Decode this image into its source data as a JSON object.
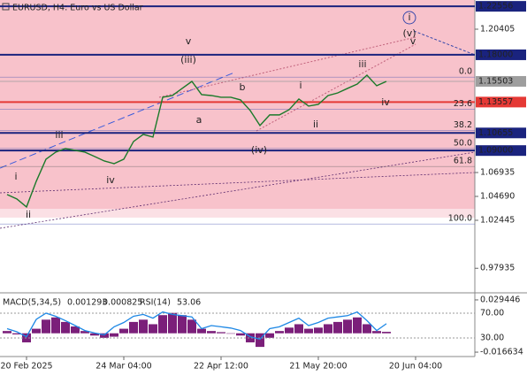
{
  "chart_data": [
    {
      "type": "line",
      "title": "EURUSD, H4:  Euro vs US Dollar",
      "categories": [
        null,
        null,
        "20 Feb 2025",
        null,
        null,
        null,
        null,
        null,
        null,
        null,
        null,
        null,
        "24 Mar 04:00",
        null,
        null,
        null,
        null,
        null,
        null,
        null,
        null,
        null,
        "22 Apr 12:00",
        null,
        null,
        null,
        null,
        null,
        null,
        null,
        null,
        null,
        "21 May 20:00",
        null,
        null,
        null,
        null,
        null,
        null,
        null,
        null,
        null,
        "20 Jun 04:00",
        null,
        null,
        null,
        null,
        null
      ],
      "series": [
        {
          "name": "EURUSD",
          "color": "#1b7a2a",
          "values": [
            1.0487,
            1.0445,
            1.037,
            1.0611,
            1.0819,
            1.0885,
            1.0919,
            1.0902,
            1.0885,
            1.0844,
            1.0802,
            1.0777,
            1.0819,
            1.0985,
            1.1052,
            1.1027,
            1.1401,
            1.1417,
            1.1484,
            1.155,
            1.1426,
            1.1417,
            1.1401,
            1.1401,
            1.1376,
            1.1276,
            1.1135,
            1.1235,
            1.1235,
            1.1284,
            1.1384,
            1.1318,
            1.1334,
            1.1417,
            1.1442,
            1.1484,
            1.1525,
            1.1608,
            1.1509,
            1.155,
            null,
            null,
            null,
            null,
            null,
            null,
            null,
            null
          ]
        }
      ],
      "ylim": [
        0.9571,
        1.2315
      ],
      "yticks": [
        1.20405,
        1.06935,
        {
          "value": 1.0469,
          "label": "1.04690"
        },
        1.02445,
        0.97935
      ],
      "levels": [
        {
          "value": 1.22556,
          "color": "#1a237e"
        },
        {
          "value": 1.18,
          "label": "1.18000",
          "color": "#1a237e"
        },
        {
          "value": 1.15503,
          "color": "#9e9e9e"
        },
        {
          "value": 1.13557,
          "color": "#e53935"
        },
        {
          "value": 1.10655,
          "color": "#1a237e"
        },
        {
          "value": 1.09,
          "label": "1.09000",
          "color": "#1a237e"
        }
      ],
      "fib_levels": [
        {
          "value": 1.159,
          "label": "0.0"
        },
        {
          "value": 1.129,
          "label": "23.6"
        },
        {
          "value": 1.109,
          "label": "38.2"
        },
        {
          "value": 1.092,
          "label": "50.0"
        },
        {
          "value": 1.075,
          "label": "61.8"
        },
        {
          "value": 1.021,
          "label": "100.0"
        }
      ],
      "annotations": [
        {
          "text": "i",
          "color": "#666"
        },
        {
          "text": "ii",
          "color": "#666"
        },
        {
          "text": "iii",
          "color": "#666"
        },
        {
          "text": "iv",
          "color": "#666"
        },
        {
          "text": "(iii)",
          "color": "#c62828"
        },
        {
          "text": "v",
          "color": "#666"
        },
        {
          "text": "a",
          "color": "#666"
        },
        {
          "text": "b",
          "color": "#666"
        },
        {
          "text": "(iv)",
          "color": "#c62828"
        },
        {
          "text": "i",
          "color": "#666"
        },
        {
          "text": "ii",
          "color": "#666"
        },
        {
          "text": "iii",
          "color": "#666"
        },
        {
          "text": "iv",
          "color": "#666"
        },
        {
          "text": "(v)",
          "color": "#c62828"
        },
        {
          "text": "v",
          "color": "#666"
        },
        {
          "text": "i",
          "color": "#3949ab"
        }
      ]
    },
    {
      "type": "indicator",
      "macd_name": "MACD(5,34,5)",
      "macd_value": 0.001293,
      "signal_value": 0.000825,
      "rsi_name": "RSI(14)",
      "rsi_value": 53.06,
      "series": [
        {
          "name": "MACD",
          "color": "#7b1f7a",
          "values": [
            0.002,
            -0.001,
            -0.008,
            0.004,
            0.012,
            0.014,
            0.01,
            0.006,
            0.002,
            -0.002,
            -0.004,
            -0.003,
            0.004,
            0.01,
            0.012,
            0.008,
            0.016,
            0.018,
            0.016,
            0.012,
            0.004,
            0.002,
            0.001,
            0,
            -0.002,
            -0.008,
            -0.012,
            -0.004,
            0.002,
            0.005,
            0.008,
            0.004,
            0.005,
            0.008,
            0.01,
            0.012,
            0.014,
            0.008,
            0.002,
            0.001293
          ]
        },
        {
          "name": "RSI",
          "color": "#1e88e5",
          "axis": "y2",
          "values": [
            45,
            40,
            32,
            60,
            70,
            65,
            58,
            50,
            42,
            38,
            35,
            48,
            55,
            65,
            68,
            62,
            72,
            68,
            66,
            64,
            45,
            50,
            48,
            46,
            42,
            32,
            28,
            45,
            48,
            55,
            62,
            50,
            55,
            62,
            64,
            66,
            72,
            58,
            42,
            53.06
          ]
        }
      ],
      "ylim": [
        -0.0205,
        0.0341
      ],
      "yticks": [
        0.029446,
        -0.016634
      ],
      "y2lim": [
        0,
        100
      ],
      "y2ticks": [
        {
          "value": 70,
          "label": "70.00"
        },
        {
          "value": 30,
          "label": "30.00"
        }
      ]
    }
  ]
}
